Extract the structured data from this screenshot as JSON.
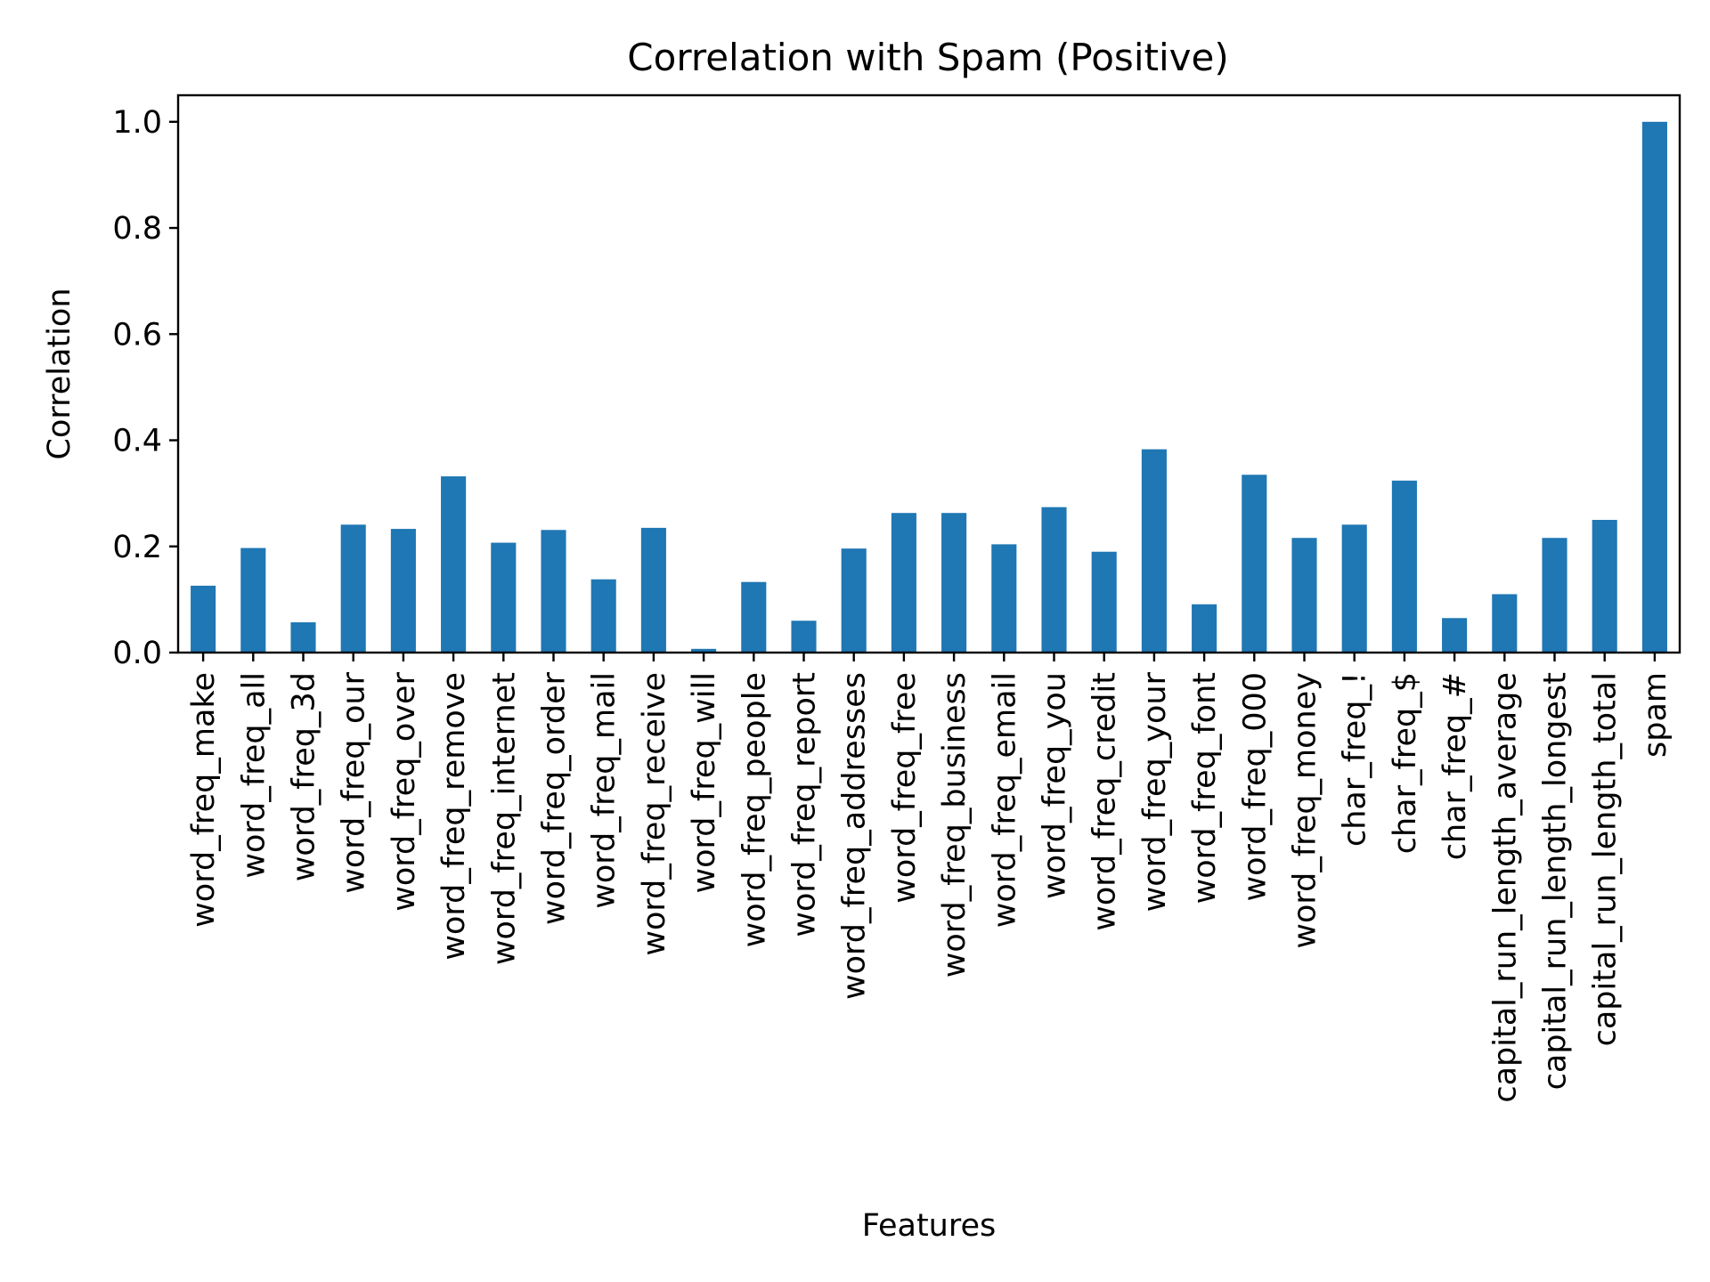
{
  "chart_data": {
    "type": "bar",
    "title": "Correlation with Spam (Positive)",
    "xlabel": "Features",
    "ylabel": "Correlation",
    "ylim": [
      0,
      1.05
    ],
    "yticks": [
      0.0,
      0.2,
      0.4,
      0.6,
      0.8,
      1.0
    ],
    "ytick_labels": [
      "0.0",
      "0.2",
      "0.4",
      "0.6",
      "0.8",
      "1.0"
    ],
    "grid": false,
    "bar_color": "#1f77b4",
    "categories": [
      "word_freq_make",
      "word_freq_all",
      "word_freq_3d",
      "word_freq_our",
      "word_freq_over",
      "word_freq_remove",
      "word_freq_internet",
      "word_freq_order",
      "word_freq_mail",
      "word_freq_receive",
      "word_freq_will",
      "word_freq_people",
      "word_freq_report",
      "word_freq_addresses",
      "word_freq_free",
      "word_freq_business",
      "word_freq_email",
      "word_freq_you",
      "word_freq_credit",
      "word_freq_your",
      "word_freq_font",
      "word_freq_000",
      "word_freq_money",
      "char_freq_!",
      "char_freq_$",
      "char_freq_#",
      "capital_run_length_average",
      "capital_run_length_longest",
      "capital_run_length_total",
      "spam"
    ],
    "values": [
      0.126,
      0.197,
      0.057,
      0.241,
      0.233,
      0.332,
      0.207,
      0.231,
      0.138,
      0.235,
      0.007,
      0.133,
      0.06,
      0.196,
      0.263,
      0.263,
      0.204,
      0.274,
      0.19,
      0.383,
      0.091,
      0.335,
      0.216,
      0.241,
      0.324,
      0.065,
      0.11,
      0.216,
      0.25,
      1.0
    ]
  }
}
